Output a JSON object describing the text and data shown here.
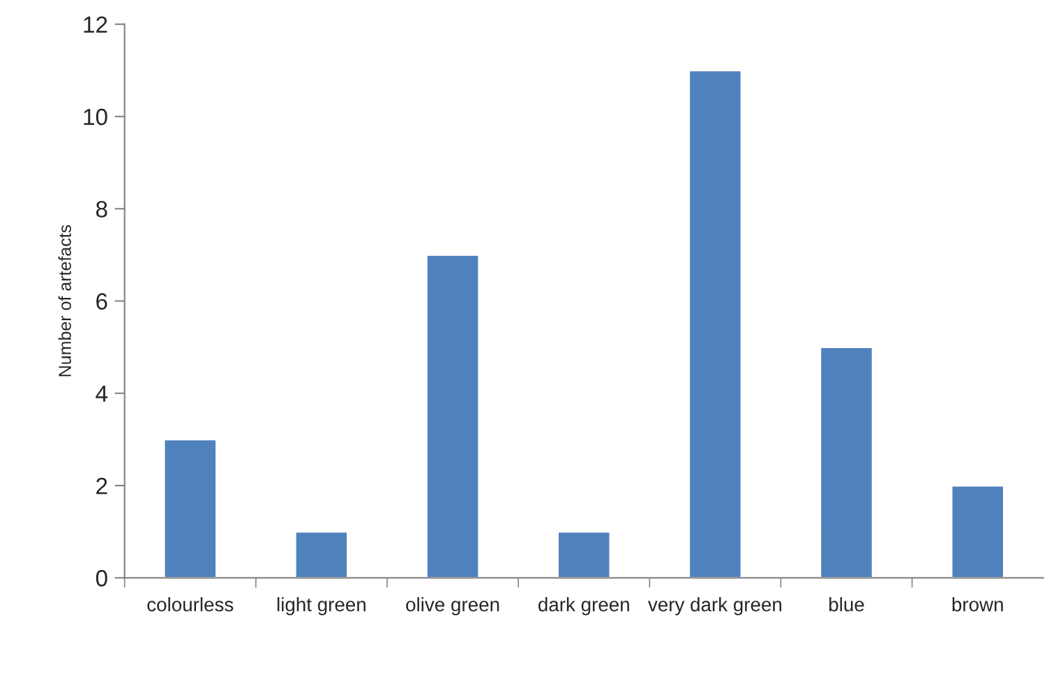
{
  "chart_data": {
    "type": "bar",
    "ylabel": "Number of artefacts",
    "categories": [
      "colourless",
      "light green",
      "olive green",
      "dark green",
      "very dark green",
      "blue",
      "brown"
    ],
    "values": [
      3,
      1,
      7,
      1,
      11,
      5,
      2
    ],
    "color": "#4f81bd",
    "ylim": [
      0,
      12
    ],
    "yticks": [
      0,
      2,
      4,
      6,
      8,
      10,
      12
    ],
    "grid": false,
    "legend": false
  }
}
